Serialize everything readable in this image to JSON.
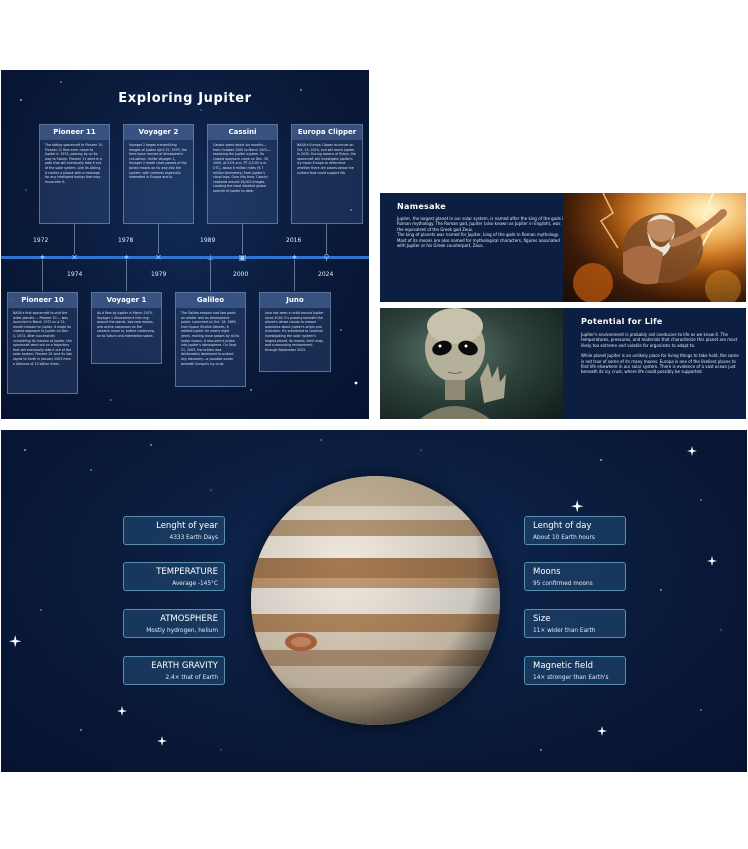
{
  "timeline": {
    "title": "Exploring Jupiter",
    "years_top": [
      "1972",
      "1978",
      "1989",
      "2016"
    ],
    "years_bottom": [
      "1974",
      "1979",
      "2000",
      "2024"
    ],
    "top_cards": [
      {
        "title": "Pioneer 11",
        "body": "The sibling spacecraft to Pioneer 10, Pioneer 11 flew even closer to Jupiter in 1974, passing by on its way to Saturn. Pioneer 11 went in a path that will eventually take it out of the solar system. Like its sibling, it carries a plaque with a message for any intelligent beings that may encounter it."
      },
      {
        "title": "Voyager 2",
        "body": "Voyager 2 began transmitting images of Jupiter April 25, 1979, the time-lapse movies of atmospheric circulation. Unlike Voyager 1, Voyager 2 made close passes of the Jovian moons on its way into the system, with cameras especially interested in Europa and Io."
      },
      {
        "title": "Cassini",
        "body": "Cassini spent about six months—from October 2000 to March 2001—exploring the Jupiter system. Its closest approach came on Dec. 30, 2000, at 2:05 a.m. PT (10:05 a.m. UTC), about 6 million miles (9.7 million kilometers) from Jupiter's cloud tops. Over this time, Cassini captured around 26,000 images, creating the most detailed global portrait of Jupiter to date."
      },
      {
        "title": "Europa Clipper",
        "body": "NASA's Europa Clipper launched on Oct. 14, 2024, and will reach Jupiter in 2030. During dozens of flybys, the spacecraft will investigate Jupiter's icy moon Europa to determine whether there are places below the surface that could support life."
      }
    ],
    "bottom_cards": [
      {
        "title": "Pioneer 10",
        "body": "NASA's first spacecraft to visit the outer planets — Pioneer 10 — was launched in March 1972 on a 21-month mission to Jupiter. It made its closest approach to Jupiter on Dec. 4, 1973. After successfully completing its mission at Jupiter, the spacecraft went out on a trajectory that will eventually take it out of the solar system. Pioneer 10 sent its last signal to Earth in January 2003 from a distance of 12 billion miles."
      },
      {
        "title": "Voyager 1",
        "body": "As it flew by Jupiter in March 1979, Voyager 1 discovered a thin ring around the planet, two new moons, and active volcanoes on the volcanic moon Io, before continuing on to Saturn and interstellar space."
      },
      {
        "title": "Galileo",
        "body": "The Galileo mission had two parts: an orbiter and an atmospheric probe. Launched on Oct. 18, 1989, from Space Shuttle Atlantis, it orbited Jupiter for nearly eight years, making close passes by all its major moons. It also sent a probe into Jupiter's atmosphere. On Sept. 21, 2003, the orbiter was deliberately destroyed to protect any discovery—a possible ocean beneath Europa's icy crust."
      },
      {
        "title": "Juno",
        "body": "Juno has been in orbit around Jupiter since 2016. It's probing beneath the planet's dense clouds to answer questions about Jupiter's origin and evolution. It's scheduled to continue investigating the solar system's largest planet, its moons, faint rings, and surrounding environment through September 2025."
      }
    ]
  },
  "namesake": {
    "title": "Namesake",
    "text": "Jupiter, the largest planet in our solar system, is named after the king of the gods in Roman mythology. The Roman god, Jupiter (also known as Jupiter in English), was the equivalent of the Greek god Zeus.\nThe king of planets was named for Jupiter, king of the gods in Roman mythology. Most of its moons are also named for mythological characters, figures associated with Jupiter or his Greek counterpart, Zeus."
  },
  "life": {
    "title": "Potential for Life",
    "paragraphs": [
      "Jupiter's environment is probably not conducive to life as we know it. The temperatures, pressures, and materials that characterize this planet are most likely too extreme and volatile for organisms to adapt to.",
      "While planet Jupiter is an unlikely place for living things to take hold, the same is not true of some of its many moons. Europa is one of the likeliest places to find life elsewhere in our solar system. There is evidence of a vast ocean just beneath its icy crust, where life could possibly be supported."
    ]
  },
  "facts": {
    "left": [
      {
        "label": "Lenght of year",
        "value": "4333 Earth Days"
      },
      {
        "label": "TEMPERATURE",
        "value": "Average -145°C"
      },
      {
        "label": "ATMOSPHERE",
        "value": "Mostly hydrogen, helium"
      },
      {
        "label": "EARTH GRAVITY",
        "value": "2.4× that of Earth"
      }
    ],
    "right": [
      {
        "label": "Lenght of day",
        "value": "About 10 Earth hours"
      },
      {
        "label": "Moons",
        "value": "95 confirmed moons"
      },
      {
        "label": "Size",
        "value": "11× wider than Earth"
      },
      {
        "label": "Magnetic field",
        "value": "14× stronger than Earth's"
      }
    ]
  },
  "colors": {
    "panel_bg": "#0c1e42",
    "timeline_line": "#2e74d0",
    "fact_border": "#78b4d2"
  }
}
